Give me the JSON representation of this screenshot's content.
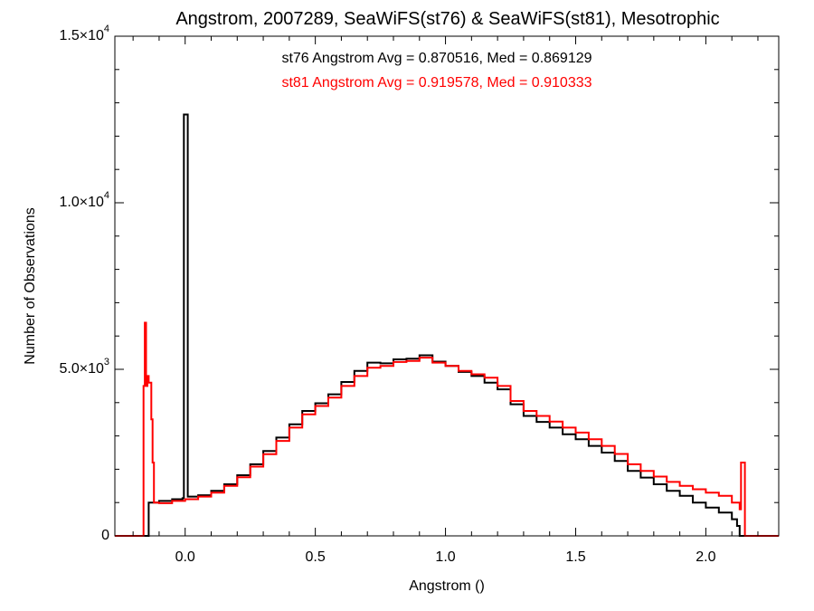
{
  "chart_data": {
    "type": "line",
    "title": "Angstrom, 2007289, SeaWiFS(st76) & SeaWiFS(st81), Mesotrophic",
    "xlabel": "Angstrom ()",
    "ylabel": "Number of Observations",
    "xlim": [
      -0.27,
      2.28
    ],
    "ylim": [
      0,
      15000
    ],
    "grid": false,
    "step": true,
    "x_ticks": [
      {
        "value": 0.0,
        "label": "0.0"
      },
      {
        "value": 0.5,
        "label": "0.5"
      },
      {
        "value": 1.0,
        "label": "1.0"
      },
      {
        "value": 1.5,
        "label": "1.5"
      },
      {
        "value": 2.0,
        "label": "2.0"
      }
    ],
    "y_ticks": [
      {
        "value": 0,
        "mant": "0",
        "exp": ""
      },
      {
        "value": 5000,
        "mant": "5.0×10",
        "exp": "3"
      },
      {
        "value": 10000,
        "mant": "1.0×10",
        "exp": "4"
      },
      {
        "value": 15000,
        "mant": "1.5×10",
        "exp": "4"
      }
    ],
    "annotations": [
      {
        "text": "st76 Angstrom Avg = 0.870516, Med = 0.869129",
        "color": "#000000"
      },
      {
        "text": "st81 Angstrom Avg = 0.919578, Med = 0.910333",
        "color": "#ff0000"
      }
    ],
    "series": [
      {
        "color": "#000000",
        "points": [
          [
            -0.27,
            0
          ],
          [
            -0.15,
            0
          ],
          [
            -0.14,
            1000
          ],
          [
            -0.1,
            1050
          ],
          [
            -0.05,
            1100
          ],
          [
            -0.01,
            1130
          ],
          [
            -0.005,
            12650
          ],
          [
            0.005,
            12650
          ],
          [
            0.01,
            1180
          ],
          [
            0.05,
            1220
          ],
          [
            0.1,
            1350
          ],
          [
            0.15,
            1550
          ],
          [
            0.2,
            1820
          ],
          [
            0.25,
            2150
          ],
          [
            0.3,
            2550
          ],
          [
            0.35,
            2950
          ],
          [
            0.4,
            3350
          ],
          [
            0.45,
            3750
          ],
          [
            0.5,
            3980
          ],
          [
            0.55,
            4250
          ],
          [
            0.6,
            4620
          ],
          [
            0.65,
            4950
          ],
          [
            0.7,
            5200
          ],
          [
            0.75,
            5180
          ],
          [
            0.8,
            5300
          ],
          [
            0.85,
            5320
          ],
          [
            0.9,
            5420
          ],
          [
            0.95,
            5230
          ],
          [
            1.0,
            5100
          ],
          [
            1.05,
            4920
          ],
          [
            1.1,
            4800
          ],
          [
            1.15,
            4600
          ],
          [
            1.2,
            4400
          ],
          [
            1.25,
            3950
          ],
          [
            1.3,
            3600
          ],
          [
            1.35,
            3420
          ],
          [
            1.4,
            3250
          ],
          [
            1.45,
            3050
          ],
          [
            1.5,
            2900
          ],
          [
            1.55,
            2700
          ],
          [
            1.6,
            2500
          ],
          [
            1.65,
            2250
          ],
          [
            1.7,
            1950
          ],
          [
            1.75,
            1750
          ],
          [
            1.8,
            1550
          ],
          [
            1.85,
            1350
          ],
          [
            1.9,
            1200
          ],
          [
            1.95,
            1000
          ],
          [
            2.0,
            850
          ],
          [
            2.05,
            700
          ],
          [
            2.1,
            500
          ],
          [
            2.12,
            300
          ],
          [
            2.13,
            0
          ],
          [
            2.28,
            0
          ]
        ]
      },
      {
        "color": "#ff0000",
        "points": [
          [
            -0.27,
            0
          ],
          [
            -0.165,
            0
          ],
          [
            -0.16,
            4500
          ],
          [
            -0.155,
            6400
          ],
          [
            -0.15,
            4500
          ],
          [
            -0.145,
            4800
          ],
          [
            -0.14,
            4600
          ],
          [
            -0.13,
            3500
          ],
          [
            -0.125,
            2200
          ],
          [
            -0.12,
            1000
          ],
          [
            -0.1,
            980
          ],
          [
            -0.05,
            1050
          ],
          [
            0.0,
            1100
          ],
          [
            0.05,
            1180
          ],
          [
            0.1,
            1300
          ],
          [
            0.15,
            1500
          ],
          [
            0.2,
            1760
          ],
          [
            0.25,
            2080
          ],
          [
            0.3,
            2450
          ],
          [
            0.35,
            2850
          ],
          [
            0.4,
            3250
          ],
          [
            0.45,
            3650
          ],
          [
            0.5,
            3900
          ],
          [
            0.55,
            4150
          ],
          [
            0.6,
            4500
          ],
          [
            0.65,
            4800
          ],
          [
            0.7,
            5050
          ],
          [
            0.75,
            5100
          ],
          [
            0.8,
            5220
          ],
          [
            0.85,
            5250
          ],
          [
            0.9,
            5350
          ],
          [
            0.95,
            5200
          ],
          [
            1.0,
            5100
          ],
          [
            1.05,
            4950
          ],
          [
            1.1,
            4850
          ],
          [
            1.15,
            4750
          ],
          [
            1.2,
            4500
          ],
          [
            1.25,
            4050
          ],
          [
            1.3,
            3750
          ],
          [
            1.35,
            3600
          ],
          [
            1.4,
            3430
          ],
          [
            1.45,
            3250
          ],
          [
            1.5,
            3100
          ],
          [
            1.55,
            2900
          ],
          [
            1.6,
            2700
          ],
          [
            1.65,
            2460
          ],
          [
            1.7,
            2150
          ],
          [
            1.75,
            1950
          ],
          [
            1.8,
            1780
          ],
          [
            1.85,
            1620
          ],
          [
            1.9,
            1500
          ],
          [
            1.95,
            1400
          ],
          [
            2.0,
            1300
          ],
          [
            2.05,
            1200
          ],
          [
            2.1,
            1000
          ],
          [
            2.13,
            800
          ],
          [
            2.135,
            2200
          ],
          [
            2.145,
            2200
          ],
          [
            2.15,
            0
          ],
          [
            2.28,
            0
          ]
        ]
      }
    ]
  }
}
